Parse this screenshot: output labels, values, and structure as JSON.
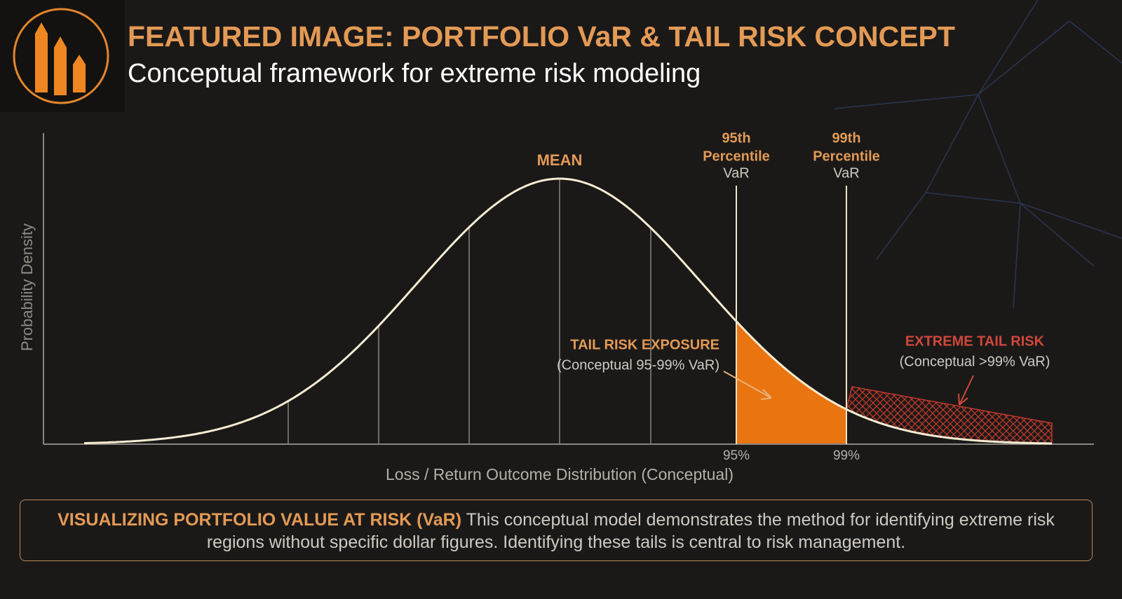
{
  "header": {
    "title": "FEATURED IMAGE: PORTFOLIO VaR & TAIL RISK CONCEPT",
    "subtitle": "Conceptual framework for extreme risk modeling"
  },
  "diagram": {
    "y_axis_label": "Probability Density",
    "x_axis_label": "Loss / Return Outcome Distribution (Conceptual)",
    "mean_label": "MEAN",
    "markers": [
      {
        "title": "95th",
        "subtitle": "Percentile",
        "kind": "VaR",
        "tick": "95%"
      },
      {
        "title": "99th",
        "subtitle": "Percentile",
        "kind": "VaR",
        "tick": "99%"
      }
    ],
    "annotations": [
      {
        "title": "TAIL RISK EXPOSURE",
        "text": "(Conceptual 95-99% VaR)"
      },
      {
        "title": "EXTREME TAIL RISK",
        "text": "(Conceptual >99% VaR)"
      }
    ]
  },
  "footer": {
    "heading": "VISUALIZING PORTFOLIO VALUE AT RISK (VaR)",
    "text": "This conceptual model demonstrates the method for identifying extreme risk regions without specific dollar figures. Identifying these tails is central to risk management."
  }
}
